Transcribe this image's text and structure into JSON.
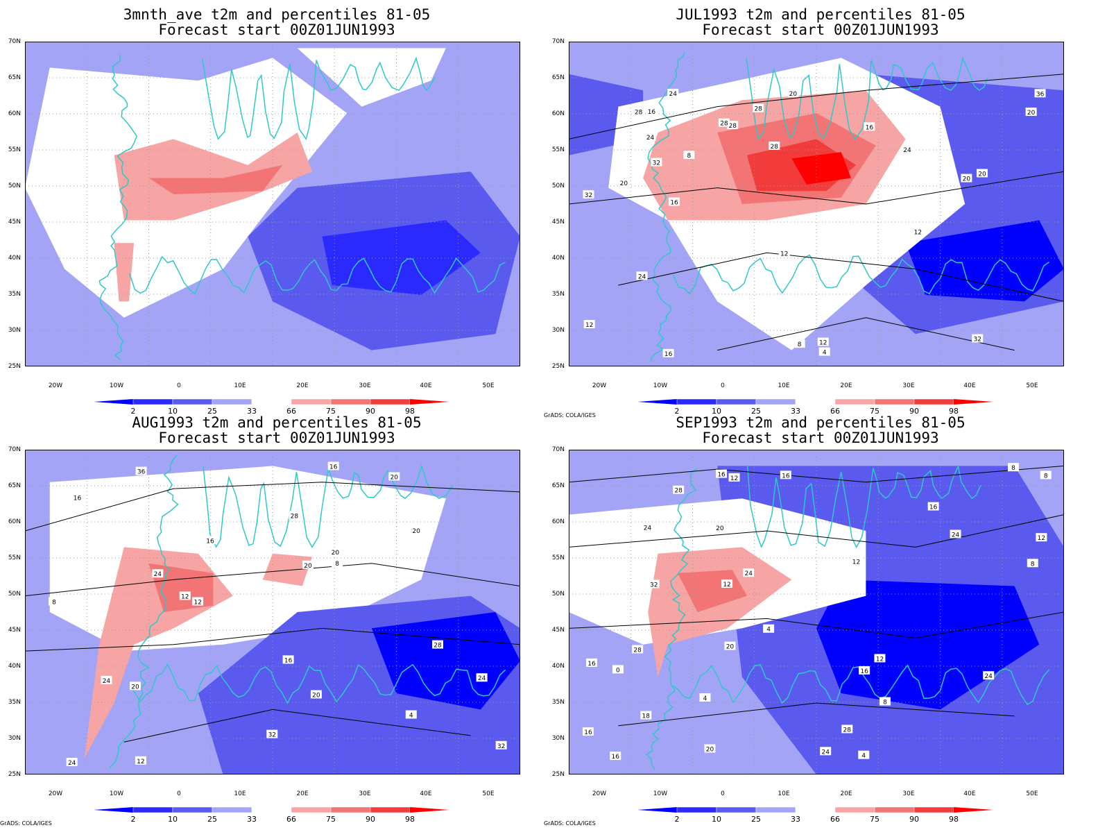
{
  "panels": [
    {
      "title_line1": "3mnth_ave t2m and percentiles 81-05",
      "title_line2": "Forecast start 00Z01JUN1993",
      "credit": "",
      "contours": []
    },
    {
      "title_line1": "JUL1993 t2m and percentiles 81-05",
      "title_line2": "Forecast start 00Z01JUN1993",
      "credit": "GrADS: COLA/IGES",
      "contours": [
        "4",
        "8",
        "12",
        "12",
        "12",
        "8",
        "16",
        "16",
        "12",
        "16",
        "16",
        "20",
        "20",
        "20",
        "24",
        "20",
        "24",
        "28",
        "24",
        "32",
        "20",
        "28",
        "28",
        "36",
        "32",
        "28",
        "24",
        "32",
        "28"
      ]
    },
    {
      "title_line1": "AUG1993 t2m and percentiles 81-05",
      "title_line2": "Forecast start 00Z01JUN1993",
      "credit": "GrADS: COLA/IGES",
      "contours": [
        "4",
        "8",
        "8",
        "12",
        "12",
        "12",
        "16",
        "16",
        "16",
        "16",
        "20",
        "20",
        "20",
        "20",
        "24",
        "24",
        "24",
        "20",
        "28",
        "24",
        "28",
        "36",
        "32",
        "32",
        "20"
      ]
    },
    {
      "title_line1": "SEP1993 t2m and percentiles 81-05",
      "title_line2": "Forecast start 00Z01JUN1993",
      "credit": "GrADS: COLA/IGES",
      "contours": [
        "0",
        "4",
        "4",
        "8",
        "8",
        "4",
        "8",
        "12",
        "12",
        "12",
        "8",
        "12",
        "16",
        "12",
        "16",
        "16",
        "20",
        "20",
        "16",
        "16",
        "20",
        "18",
        "16",
        "16",
        "24",
        "28",
        "24",
        "24",
        "24",
        "32",
        "28",
        "24",
        "28"
      ]
    }
  ],
  "lat_labels": [
    "70N",
    "65N",
    "60N",
    "55N",
    "50N",
    "45N",
    "40N",
    "35N",
    "30N",
    "25N"
  ],
  "lon_labels": [
    "20W",
    "10W",
    "0",
    "10E",
    "20E",
    "30E",
    "40E",
    "50E"
  ],
  "colorbar_labels": [
    "2",
    "10",
    "25",
    "33",
    "66",
    "75",
    "90",
    "98"
  ],
  "colors": {
    "blue_extreme": "#0000ff",
    "blue_90": "#2a2aff",
    "blue_75": "#5a5aef",
    "blue_lo": "#a4a4f6",
    "white": "#ffffff",
    "red_lo": "#f6a4a4",
    "red_75": "#f27474",
    "red_90": "#f23c3c",
    "red_extreme": "#ff0000",
    "coast": "#2ec8c8",
    "contour": "#000000"
  }
}
